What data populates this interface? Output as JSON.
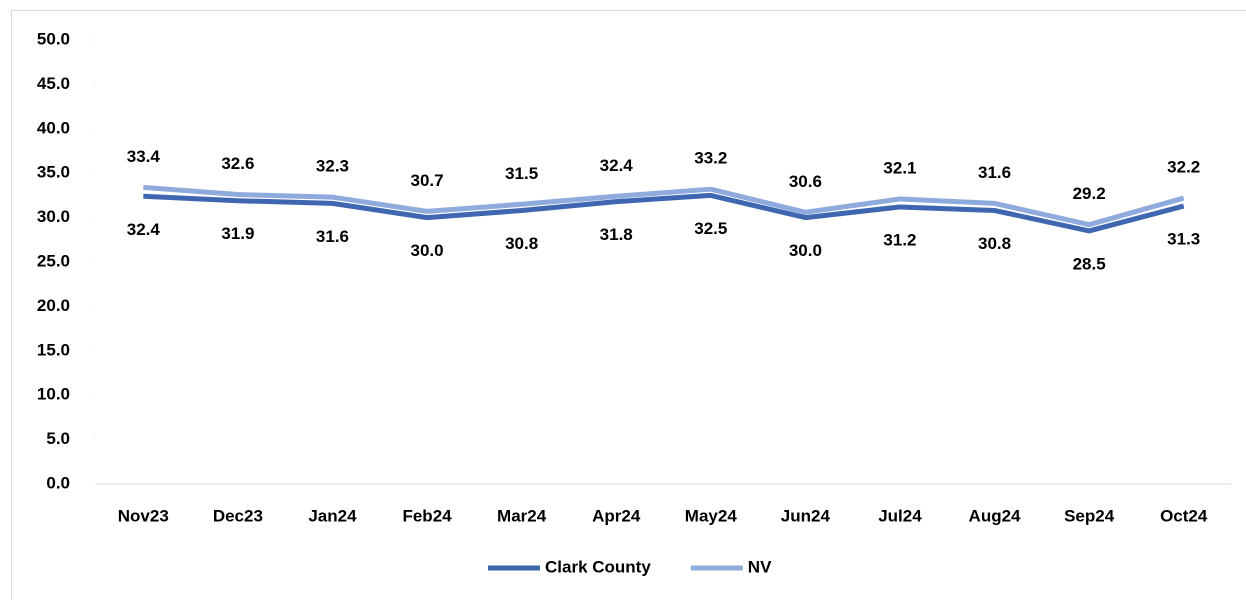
{
  "chart_data": {
    "type": "line",
    "categories": [
      "Nov23",
      "Dec23",
      "Jan24",
      "Feb24",
      "Mar24",
      "Apr24",
      "May24",
      "Jun24",
      "Jul24",
      "Aug24",
      "Sep24",
      "Oct24"
    ],
    "series": [
      {
        "name": "Clark County",
        "color": "#3f67b1",
        "values": [
          32.4,
          31.9,
          31.6,
          30.0,
          30.8,
          31.8,
          32.5,
          30.0,
          31.2,
          30.8,
          28.5,
          31.3
        ],
        "value_labels": [
          "32.4",
          "31.9",
          "31.6",
          "30.0",
          "30.8",
          "31.8",
          "32.5",
          "30.0",
          "31.2",
          "30.8",
          "28.5",
          "31.3"
        ]
      },
      {
        "name": "NV",
        "color": "#8faadc",
        "values": [
          33.4,
          32.6,
          32.3,
          30.7,
          31.5,
          32.4,
          33.2,
          30.6,
          32.1,
          31.6,
          29.2,
          32.2
        ],
        "value_labels": [
          "33.4",
          "32.6",
          "32.3",
          "30.7",
          "31.5",
          "32.4",
          "33.2",
          "30.6",
          "32.1",
          "31.6",
          "29.2",
          "32.2"
        ]
      }
    ],
    "ylim": [
      0,
      50
    ],
    "yticks": [
      {
        "value": 0,
        "label": "0.0"
      },
      {
        "value": 5,
        "label": "5.0"
      },
      {
        "value": 10,
        "label": "10.0"
      },
      {
        "value": 15,
        "label": "15.0"
      },
      {
        "value": 20,
        "label": "20.0"
      },
      {
        "value": 25,
        "label": "25.0"
      },
      {
        "value": 30,
        "label": "30.0"
      },
      {
        "value": 35,
        "label": "35.0"
      },
      {
        "value": 40,
        "label": "40.0"
      },
      {
        "value": 45,
        "label": "45.0"
      },
      {
        "value": 50,
        "label": "50.0"
      }
    ],
    "grid": false,
    "legend": "bottom"
  }
}
